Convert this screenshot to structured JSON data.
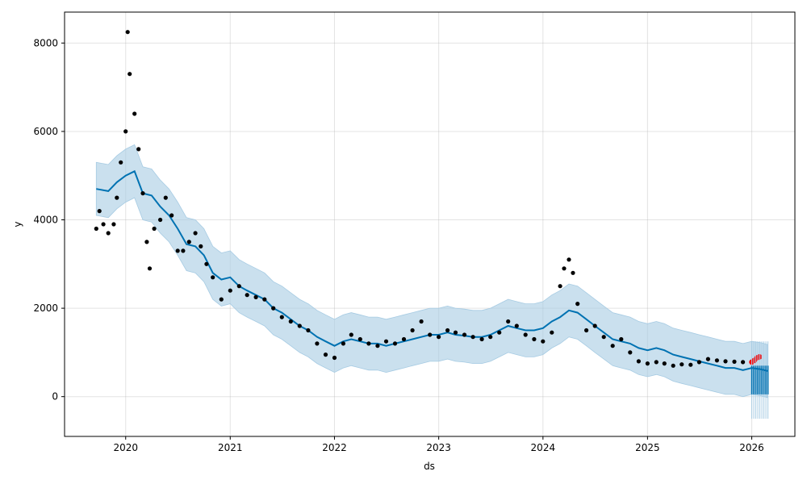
{
  "chart_data": {
    "type": "scatter",
    "title": "",
    "xlabel": "ds",
    "ylabel": "y",
    "x_ticks": [
      "2020",
      "2021",
      "2022",
      "2023",
      "2024",
      "2025",
      "2026"
    ],
    "y_ticks": [
      "0",
      "2000",
      "4000",
      "6000",
      "8000"
    ],
    "xlim": [
      "2019-06-01",
      "2026-06-01"
    ],
    "ylim": [
      -900,
      8700
    ],
    "grid": true,
    "legend": "none",
    "colors": {
      "observed": "#000000",
      "forecast_line": "#0072B2",
      "uncertainty_band": "#a6cbe3",
      "forecast_marks": "#0072B2",
      "recent_points": "#ff0000"
    },
    "series": [
      {
        "role": "observed",
        "points": [
          [
            "2019-09-20",
            3800
          ],
          [
            "2019-10-01",
            4200
          ],
          [
            "2019-10-15",
            3900
          ],
          [
            "2019-11-01",
            3700
          ],
          [
            "2019-11-20",
            3900
          ],
          [
            "2019-12-01",
            4500
          ],
          [
            "2019-12-15",
            5300
          ],
          [
            "2020-01-01",
            6000
          ],
          [
            "2020-01-08",
            8250
          ],
          [
            "2020-01-15",
            7300
          ],
          [
            "2020-02-01",
            6400
          ],
          [
            "2020-02-15",
            5600
          ],
          [
            "2020-03-01",
            4600
          ],
          [
            "2020-03-15",
            3500
          ],
          [
            "2020-03-25",
            2900
          ],
          [
            "2020-04-10",
            3800
          ],
          [
            "2020-05-01",
            4000
          ],
          [
            "2020-05-20",
            4500
          ],
          [
            "2020-06-10",
            4100
          ],
          [
            "2020-07-01",
            3300
          ],
          [
            "2020-07-20",
            3300
          ],
          [
            "2020-08-10",
            3500
          ],
          [
            "2020-09-01",
            3700
          ],
          [
            "2020-09-20",
            3400
          ],
          [
            "2020-10-10",
            3000
          ],
          [
            "2020-11-01",
            2700
          ],
          [
            "2020-12-01",
            2200
          ],
          [
            "2021-01-01",
            2400
          ],
          [
            "2021-02-01",
            2500
          ],
          [
            "2021-03-01",
            2300
          ],
          [
            "2021-04-01",
            2250
          ],
          [
            "2021-05-01",
            2200
          ],
          [
            "2021-06-01",
            2000
          ],
          [
            "2021-07-01",
            1800
          ],
          [
            "2021-08-01",
            1700
          ],
          [
            "2021-09-01",
            1600
          ],
          [
            "2021-10-01",
            1500
          ],
          [
            "2021-11-01",
            1200
          ],
          [
            "2021-12-01",
            950
          ],
          [
            "2022-01-01",
            880
          ],
          [
            "2022-02-01",
            1200
          ],
          [
            "2022-03-01",
            1400
          ],
          [
            "2022-04-01",
            1300
          ],
          [
            "2022-05-01",
            1200
          ],
          [
            "2022-06-01",
            1150
          ],
          [
            "2022-07-01",
            1250
          ],
          [
            "2022-08-01",
            1200
          ],
          [
            "2022-09-01",
            1300
          ],
          [
            "2022-10-01",
            1500
          ],
          [
            "2022-11-01",
            1700
          ],
          [
            "2022-12-01",
            1400
          ],
          [
            "2023-01-01",
            1350
          ],
          [
            "2023-02-01",
            1500
          ],
          [
            "2023-03-01",
            1450
          ],
          [
            "2023-04-01",
            1400
          ],
          [
            "2023-05-01",
            1350
          ],
          [
            "2023-06-01",
            1300
          ],
          [
            "2023-07-01",
            1350
          ],
          [
            "2023-08-01",
            1450
          ],
          [
            "2023-09-01",
            1700
          ],
          [
            "2023-10-01",
            1600
          ],
          [
            "2023-11-01",
            1400
          ],
          [
            "2023-12-01",
            1300
          ],
          [
            "2024-01-01",
            1250
          ],
          [
            "2024-02-01",
            1450
          ],
          [
            "2024-03-01",
            2500
          ],
          [
            "2024-03-15",
            2900
          ],
          [
            "2024-04-01",
            3100
          ],
          [
            "2024-04-15",
            2800
          ],
          [
            "2024-05-01",
            2100
          ],
          [
            "2024-06-01",
            1500
          ],
          [
            "2024-07-01",
            1600
          ],
          [
            "2024-08-01",
            1350
          ],
          [
            "2024-09-01",
            1150
          ],
          [
            "2024-10-01",
            1300
          ],
          [
            "2024-11-01",
            1000
          ],
          [
            "2024-12-01",
            800
          ],
          [
            "2025-01-01",
            750
          ],
          [
            "2025-02-01",
            780
          ],
          [
            "2025-03-01",
            750
          ],
          [
            "2025-04-01",
            700
          ],
          [
            "2025-05-01",
            730
          ],
          [
            "2025-06-01",
            720
          ],
          [
            "2025-07-01",
            780
          ],
          [
            "2025-08-01",
            850
          ],
          [
            "2025-09-01",
            820
          ],
          [
            "2025-10-01",
            800
          ],
          [
            "2025-11-01",
            790
          ],
          [
            "2025-12-01",
            780
          ]
        ]
      },
      {
        "role": "recent",
        "points": [
          [
            "2026-01-01",
            780
          ],
          [
            "2026-01-10",
            820
          ],
          [
            "2026-01-20",
            880
          ],
          [
            "2026-01-28",
            900
          ]
        ]
      },
      {
        "role": "forecast",
        "points": [
          [
            "2019-09-20",
            4700
          ],
          [
            "2019-11-01",
            4650
          ],
          [
            "2019-12-01",
            4850
          ],
          [
            "2020-01-01",
            5000
          ],
          [
            "2020-02-01",
            5100
          ],
          [
            "2020-03-01",
            4600
          ],
          [
            "2020-04-01",
            4550
          ],
          [
            "2020-05-01",
            4300
          ],
          [
            "2020-06-01",
            4100
          ],
          [
            "2020-07-01",
            3800
          ],
          [
            "2020-08-01",
            3450
          ],
          [
            "2020-09-01",
            3400
          ],
          [
            "2020-10-01",
            3200
          ],
          [
            "2020-11-01",
            2800
          ],
          [
            "2020-12-01",
            2650
          ],
          [
            "2021-01-01",
            2700
          ],
          [
            "2021-02-01",
            2500
          ],
          [
            "2021-03-01",
            2400
          ],
          [
            "2021-04-01",
            2300
          ],
          [
            "2021-05-01",
            2200
          ],
          [
            "2021-06-01",
            2000
          ],
          [
            "2021-07-01",
            1900
          ],
          [
            "2021-08-01",
            1750
          ],
          [
            "2021-09-01",
            1600
          ],
          [
            "2021-10-01",
            1500
          ],
          [
            "2021-11-01",
            1350
          ],
          [
            "2021-12-01",
            1250
          ],
          [
            "2022-01-01",
            1150
          ],
          [
            "2022-02-01",
            1250
          ],
          [
            "2022-03-01",
            1300
          ],
          [
            "2022-04-01",
            1250
          ],
          [
            "2022-05-01",
            1200
          ],
          [
            "2022-06-01",
            1200
          ],
          [
            "2022-07-01",
            1150
          ],
          [
            "2022-08-01",
            1200
          ],
          [
            "2022-09-01",
            1250
          ],
          [
            "2022-10-01",
            1300
          ],
          [
            "2022-11-01",
            1350
          ],
          [
            "2022-12-01",
            1400
          ],
          [
            "2023-01-01",
            1400
          ],
          [
            "2023-02-01",
            1450
          ],
          [
            "2023-03-01",
            1400
          ],
          [
            "2023-04-01",
            1380
          ],
          [
            "2023-05-01",
            1350
          ],
          [
            "2023-06-01",
            1350
          ],
          [
            "2023-07-01",
            1400
          ],
          [
            "2023-08-01",
            1500
          ],
          [
            "2023-09-01",
            1600
          ],
          [
            "2023-10-01",
            1550
          ],
          [
            "2023-11-01",
            1500
          ],
          [
            "2023-12-01",
            1500
          ],
          [
            "2024-01-01",
            1550
          ],
          [
            "2024-02-01",
            1700
          ],
          [
            "2024-03-01",
            1800
          ],
          [
            "2024-04-01",
            1950
          ],
          [
            "2024-05-01",
            1900
          ],
          [
            "2024-06-01",
            1750
          ],
          [
            "2024-07-01",
            1600
          ],
          [
            "2024-08-01",
            1450
          ],
          [
            "2024-09-01",
            1300
          ],
          [
            "2024-10-01",
            1250
          ],
          [
            "2024-11-01",
            1200
          ],
          [
            "2024-12-01",
            1100
          ],
          [
            "2025-01-01",
            1050
          ],
          [
            "2025-02-01",
            1100
          ],
          [
            "2025-03-01",
            1050
          ],
          [
            "2025-04-01",
            950
          ],
          [
            "2025-05-01",
            900
          ],
          [
            "2025-06-01",
            850
          ],
          [
            "2025-07-01",
            800
          ],
          [
            "2025-08-01",
            750
          ],
          [
            "2025-09-01",
            700
          ],
          [
            "2025-10-01",
            650
          ],
          [
            "2025-11-01",
            650
          ],
          [
            "2025-12-01",
            600
          ],
          [
            "2026-01-01",
            650
          ],
          [
            "2026-02-01",
            620
          ],
          [
            "2026-02-25",
            580
          ]
        ]
      },
      {
        "role": "uncertainty",
        "half_width": 600
      },
      {
        "role": "forecast-period",
        "start": "2026-01-01",
        "end": "2026-02-28",
        "lower": -500,
        "upper": 1250
      }
    ]
  }
}
